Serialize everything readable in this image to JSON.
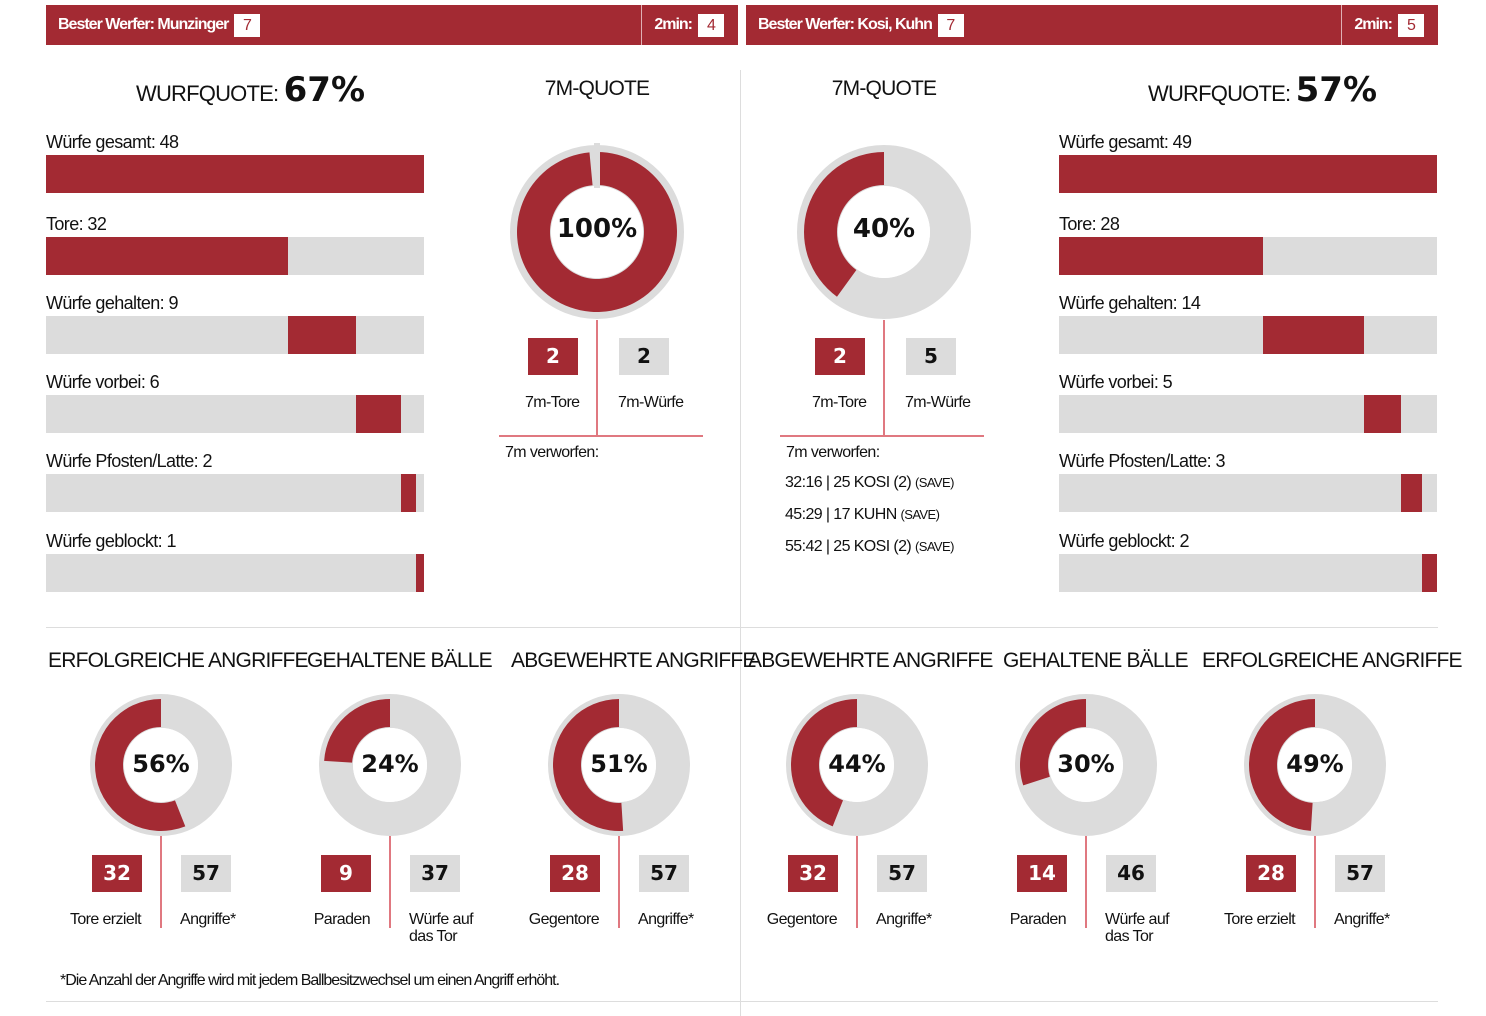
{
  "colors": {
    "accent": "#a32a33",
    "track": "#dcdcdc"
  },
  "teams": [
    {
      "best_shooter_label": "Bester Werfer: Munzinger",
      "best_shooter_goals": "7",
      "two_min_label": "2min:",
      "two_min": "4",
      "quote_label": "WURFQUOTE:",
      "quote_value": "67%",
      "bars": [
        {
          "label": "Würfe gesamt: 48",
          "value": 48
        },
        {
          "label": "Tore: 32",
          "value": 32
        },
        {
          "label": "Würfe gehalten: 9",
          "value": 9
        },
        {
          "label": "Würfe vorbei: 6",
          "value": 6
        },
        {
          "label": "Würfe Pfosten/Latte: 2",
          "value": 2
        },
        {
          "label": "Würfe geblockt: 1",
          "value": 1
        }
      ],
      "seven_m": {
        "title": "7M-QUOTE",
        "percent_label": "100%",
        "percent": 100,
        "goals": "2",
        "attempts": "2",
        "goals_label": "7m-Tore",
        "attempts_label": "7m-Würfe",
        "missed_label": "7m verworfen:",
        "missed": []
      }
    },
    {
      "best_shooter_label": "Bester Werfer: Kosi, Kuhn",
      "best_shooter_goals": "7",
      "two_min_label": "2min:",
      "two_min": "5",
      "quote_label": "WURFQUOTE:",
      "quote_value": "57%",
      "bars": [
        {
          "label": "Würfe gesamt: 49",
          "value": 49
        },
        {
          "label": "Tore: 28",
          "value": 28
        },
        {
          "label": "Würfe gehalten: 14",
          "value": 14
        },
        {
          "label": "Würfe vorbei: 5",
          "value": 5
        },
        {
          "label": "Würfe Pfosten/Latte: 3",
          "value": 3
        },
        {
          "label": "Würfe geblockt: 2",
          "value": 2
        }
      ],
      "seven_m": {
        "title": "7M-QUOTE",
        "percent_label": "40%",
        "percent": 40,
        "goals": "2",
        "attempts": "5",
        "goals_label": "7m-Tore",
        "attempts_label": "7m-Würfe",
        "missed_label": "7m verworfen:",
        "missed": [
          {
            "text": "32:16 | 25 KOSI (2)",
            "tag": "(SAVE)"
          },
          {
            "text": "45:29 | 17 KUHN",
            "tag": "(SAVE)"
          },
          {
            "text": "55:42 | 25 KOSI (2)",
            "tag": "(SAVE)"
          }
        ]
      }
    }
  ],
  "donuts": [
    {
      "title": "ERFOLGREICHE ANGRIFFE",
      "percent_label": "56%",
      "percent": 56,
      "a": "32",
      "b": "57",
      "a_label": "Tore erzielt",
      "b_label": "Angriffe*"
    },
    {
      "title": "GEHALTENE BÄLLE",
      "percent_label": "24%",
      "percent": 24,
      "a": "9",
      "b": "37",
      "a_label": "Paraden",
      "b_label": "Würfe auf das Tor"
    },
    {
      "title": "ABGEWEHRTE ANGRIFFE",
      "percent_label": "51%",
      "percent": 51,
      "a": "28",
      "b": "57",
      "a_label": "Gegentore",
      "b_label": "Angriffe*"
    },
    {
      "title": "ABGEWEHRTE ANGRIFFE",
      "percent_label": "44%",
      "percent": 44,
      "a": "32",
      "b": "57",
      "a_label": "Gegentore",
      "b_label": "Angriffe*"
    },
    {
      "title": "GEHALTENE BÄLLE",
      "percent_label": "30%",
      "percent": 30,
      "a": "14",
      "b": "46",
      "a_label": "Paraden",
      "b_label": "Würfe auf das Tor"
    },
    {
      "title": "ERFOLGREICHE ANGRIFFE",
      "percent_label": "49%",
      "percent": 49,
      "a": "28",
      "b": "57",
      "a_label": "Tore erzielt",
      "b_label": "Angriffe*"
    }
  ],
  "footnote": "*Die Anzahl der Angriffe wird mit jedem Ballbesitzwechsel um einen Angriff erhöht."
}
